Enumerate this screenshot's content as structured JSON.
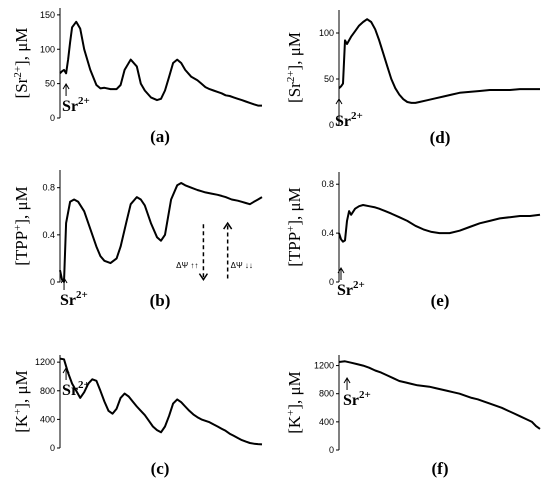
{
  "chart_data": [
    {
      "id": "a",
      "type": "line",
      "panel_label": "(a)",
      "ylabel_prefix": "[Sr",
      "ylabel_sup": "2+",
      "ylabel_suffix": "], μM",
      "yticks": [
        "0",
        "50",
        "100",
        "150"
      ],
      "ytick_values": [
        0,
        50,
        100,
        150
      ],
      "ylim": [
        0,
        160
      ],
      "xlim": [
        0,
        100
      ],
      "stimulus": {
        "base": "Sr",
        "sup": "2+",
        "x": 3
      },
      "series": [
        {
          "x": [
            0,
            1,
            2,
            3,
            4,
            5,
            6,
            8,
            10,
            12,
            15,
            18,
            20,
            22,
            25,
            28,
            30,
            32,
            35,
            38,
            40,
            42,
            45,
            48,
            50,
            52,
            54,
            56,
            58,
            60,
            62,
            65,
            68,
            70,
            72,
            74,
            76,
            78,
            80,
            82,
            84,
            86,
            88,
            90,
            92,
            94,
            96,
            98,
            100
          ],
          "y": [
            65,
            68,
            70,
            65,
            85,
            110,
            132,
            140,
            130,
            100,
            70,
            48,
            43,
            44,
            42,
            42,
            48,
            70,
            85,
            75,
            50,
            40,
            30,
            26,
            28,
            40,
            60,
            80,
            85,
            80,
            70,
            60,
            55,
            50,
            45,
            42,
            40,
            38,
            36,
            33,
            32,
            30,
            28,
            26,
            24,
            22,
            20,
            18,
            18
          ]
        }
      ]
    },
    {
      "id": "b",
      "type": "line",
      "panel_label": "(b)",
      "ylabel_prefix": "[TPP",
      "ylabel_sup": "+",
      "ylabel_suffix": "], μM",
      "yticks": [
        "0",
        "0.4",
        "0.8"
      ],
      "ytick_values": [
        0,
        0.4,
        0.8
      ],
      "ylim": [
        0,
        0.95
      ],
      "xlim": [
        0,
        100
      ],
      "stimulus": {
        "base": "Sr",
        "sup": "2+",
        "x": 2
      },
      "annotations": [
        {
          "text": "ΔΨ ↑↑",
          "x": 63,
          "y": 0.12
        },
        {
          "text": "ΔΨ ↓↓",
          "x": 90,
          "y": 0.12
        }
      ],
      "arrows": [
        {
          "direction": "down",
          "x": 71,
          "from": 0.49,
          "to": 0.02
        },
        {
          "direction": "up",
          "x": 83,
          "from": 0.03,
          "to": 0.5
        }
      ],
      "series": [
        {
          "x": [
            0,
            1,
            2,
            3,
            5,
            7,
            9,
            12,
            15,
            18,
            20,
            22,
            25,
            28,
            30,
            33,
            35,
            38,
            40,
            42,
            45,
            48,
            50,
            52,
            55,
            58,
            60,
            62,
            65,
            68,
            70,
            72,
            75,
            78,
            80,
            82,
            85,
            88,
            90,
            92,
            94,
            96,
            98,
            100
          ],
          "y": [
            0.1,
            0.02,
            0.0,
            0.5,
            0.68,
            0.7,
            0.68,
            0.6,
            0.45,
            0.3,
            0.22,
            0.18,
            0.16,
            0.2,
            0.3,
            0.52,
            0.66,
            0.72,
            0.7,
            0.65,
            0.5,
            0.38,
            0.35,
            0.4,
            0.7,
            0.82,
            0.84,
            0.82,
            0.8,
            0.78,
            0.77,
            0.76,
            0.75,
            0.74,
            0.73,
            0.72,
            0.7,
            0.69,
            0.68,
            0.67,
            0.66,
            0.68,
            0.7,
            0.72
          ]
        }
      ]
    },
    {
      "id": "c",
      "type": "line",
      "panel_label": "(c)",
      "ylabel_prefix": "[K",
      "ylabel_sup": "+",
      "ylabel_suffix": "], μM",
      "yticks": [
        "0",
        "400",
        "800",
        "1200"
      ],
      "ytick_values": [
        0,
        400,
        800,
        1200
      ],
      "ylim": [
        0,
        1300
      ],
      "xlim": [
        0,
        100
      ],
      "stimulus": {
        "base": "Sr",
        "sup": "2+",
        "x": 3
      },
      "series": [
        {
          "x": [
            0,
            2,
            4,
            6,
            8,
            10,
            12,
            14,
            16,
            18,
            20,
            22,
            24,
            26,
            28,
            30,
            32,
            34,
            36,
            38,
            40,
            42,
            44,
            46,
            48,
            50,
            52,
            54,
            56,
            58,
            60,
            62,
            64,
            66,
            68,
            70,
            72,
            74,
            76,
            78,
            80,
            82,
            84,
            86,
            88,
            90,
            92,
            94,
            96,
            98,
            100
          ],
          "y": [
            1250,
            1240,
            1050,
            900,
            800,
            700,
            780,
            900,
            960,
            940,
            800,
            650,
            520,
            480,
            550,
            700,
            760,
            720,
            650,
            580,
            520,
            460,
            380,
            300,
            250,
            220,
            300,
            450,
            620,
            680,
            640,
            580,
            520,
            470,
            430,
            400,
            380,
            360,
            330,
            300,
            270,
            240,
            200,
            170,
            140,
            110,
            90,
            70,
            60,
            55,
            50
          ]
        }
      ]
    },
    {
      "id": "d",
      "type": "line",
      "panel_label": "(d)",
      "ylabel_prefix": "[Sr",
      "ylabel_sup": "2+",
      "ylabel_suffix": "], μM",
      "yticks": [
        "0",
        "50",
        "100"
      ],
      "ytick_values": [
        0,
        50,
        100
      ],
      "ylim": [
        0,
        125
      ],
      "xlim": [
        0,
        100
      ],
      "stimulus": {
        "base": "Sr",
        "sup": "2+",
        "x": 0
      },
      "series": [
        {
          "x": [
            0,
            1,
            2,
            3,
            4,
            6,
            8,
            10,
            12,
            14,
            16,
            18,
            20,
            22,
            24,
            26,
            28,
            30,
            32,
            34,
            36,
            38,
            40,
            44,
            48,
            52,
            56,
            60,
            65,
            70,
            75,
            80,
            85,
            90,
            95,
            100
          ],
          "y": [
            40,
            42,
            45,
            92,
            88,
            96,
            102,
            108,
            112,
            115,
            112,
            104,
            92,
            78,
            64,
            50,
            40,
            33,
            28,
            25,
            24,
            24,
            25,
            27,
            29,
            31,
            33,
            35,
            36,
            37,
            38,
            38,
            38,
            39,
            39,
            39
          ]
        }
      ]
    },
    {
      "id": "e",
      "type": "line",
      "panel_label": "(e)",
      "ylabel_prefix": "[TPP",
      "ylabel_sup": "+",
      "ylabel_suffix": "], μM",
      "yticks": [
        "0",
        "0.4",
        "0.8"
      ],
      "ytick_values": [
        0,
        0.4,
        0.8
      ],
      "ylim": [
        0,
        0.9
      ],
      "xlim": [
        0,
        100
      ],
      "stimulus": {
        "base": "Sr",
        "sup": "2+",
        "x": 1
      },
      "series": [
        {
          "x": [
            0,
            1,
            2,
            3,
            4,
            5,
            6,
            8,
            10,
            12,
            15,
            18,
            20,
            23,
            26,
            30,
            34,
            38,
            42,
            46,
            50,
            55,
            60,
            65,
            70,
            75,
            80,
            85,
            90,
            95,
            100
          ],
          "y": [
            0.4,
            0.35,
            0.33,
            0.34,
            0.5,
            0.58,
            0.55,
            0.6,
            0.62,
            0.63,
            0.62,
            0.61,
            0.6,
            0.58,
            0.56,
            0.53,
            0.5,
            0.46,
            0.43,
            0.41,
            0.4,
            0.4,
            0.42,
            0.45,
            0.48,
            0.5,
            0.52,
            0.53,
            0.54,
            0.54,
            0.55
          ]
        }
      ]
    },
    {
      "id": "f",
      "type": "line",
      "panel_label": "(f)",
      "ylabel_prefix": "[K",
      "ylabel_sup": "+",
      "ylabel_suffix": "], μM",
      "yticks": [
        "0",
        "400",
        "800",
        "1200"
      ],
      "ytick_values": [
        0,
        400,
        800,
        1200
      ],
      "ylim": [
        0,
        1350
      ],
      "xlim": [
        0,
        100
      ],
      "stimulus": {
        "base": "Sr",
        "sup": "2+",
        "x": 4
      },
      "series": [
        {
          "x": [
            0,
            3,
            6,
            9,
            12,
            15,
            18,
            21,
            24,
            27,
            30,
            33,
            36,
            39,
            42,
            45,
            48,
            51,
            54,
            57,
            60,
            63,
            66,
            69,
            72,
            75,
            78,
            81,
            84,
            87,
            90,
            93,
            96,
            98,
            100
          ],
          "y": [
            1250,
            1260,
            1240,
            1220,
            1200,
            1170,
            1130,
            1100,
            1060,
            1020,
            980,
            960,
            940,
            920,
            910,
            900,
            880,
            860,
            840,
            820,
            800,
            770,
            740,
            720,
            690,
            660,
            630,
            600,
            560,
            520,
            480,
            440,
            400,
            340,
            300
          ]
        }
      ]
    }
  ]
}
